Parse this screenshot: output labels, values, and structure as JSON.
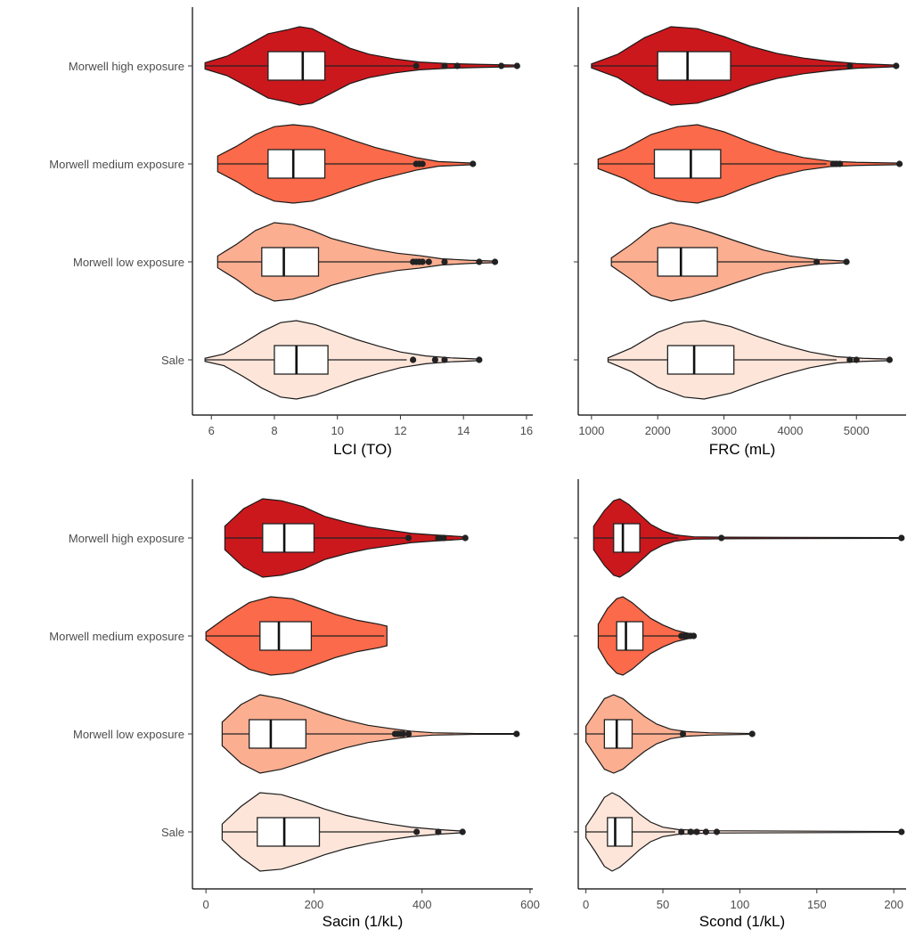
{
  "groups": [
    "Morwell high exposure",
    "Morwell medium exposure",
    "Morwell low exposure",
    "Sale"
  ],
  "colors": {
    "Morwell high exposure": "#cb181d",
    "Morwell medium exposure": "#fb6a4a",
    "Morwell low exposure": "#fcae91",
    "Sale": "#fee5d9"
  },
  "chart_data": [
    {
      "type": "violin",
      "xlabel": "LCI (TO)",
      "ylabel": "",
      "xlim": [
        5.4,
        16.2
      ],
      "xticks": [
        6,
        8,
        10,
        12,
        14,
        16
      ],
      "grid": false,
      "series": [
        {
          "name": "Morwell high exposure",
          "min": 5.8,
          "q1": 7.8,
          "median": 8.9,
          "q3": 9.6,
          "whisker_high": 12.4,
          "outliers": [
            12.5,
            13.4,
            13.8,
            15.2,
            15.7
          ],
          "density": [
            [
              5.8,
              0.08
            ],
            [
              6.5,
              0.25
            ],
            [
              7.2,
              0.55
            ],
            [
              7.8,
              0.82
            ],
            [
              8.4,
              0.92
            ],
            [
              8.8,
              1.0
            ],
            [
              9.2,
              0.95
            ],
            [
              9.8,
              0.7
            ],
            [
              10.4,
              0.45
            ],
            [
              11.0,
              0.3
            ],
            [
              11.8,
              0.18
            ],
            [
              12.6,
              0.1
            ],
            [
              13.5,
              0.06
            ],
            [
              14.5,
              0.04
            ],
            [
              15.7,
              0.02
            ]
          ]
        },
        {
          "name": "Morwell medium exposure",
          "min": 6.2,
          "q1": 7.8,
          "median": 8.6,
          "q3": 9.6,
          "whisker_high": 12.4,
          "outliers": [
            12.5,
            12.6,
            12.7,
            14.3
          ],
          "density": [
            [
              6.2,
              0.2
            ],
            [
              6.8,
              0.45
            ],
            [
              7.4,
              0.75
            ],
            [
              8.0,
              0.95
            ],
            [
              8.6,
              1.0
            ],
            [
              9.2,
              0.95
            ],
            [
              9.8,
              0.8
            ],
            [
              10.5,
              0.6
            ],
            [
              11.2,
              0.42
            ],
            [
              11.9,
              0.28
            ],
            [
              12.5,
              0.16
            ],
            [
              13.2,
              0.06
            ],
            [
              14.3,
              0.02
            ]
          ]
        },
        {
          "name": "Morwell low exposure",
          "min": 6.2,
          "q1": 7.6,
          "median": 8.3,
          "q3": 9.4,
          "whisker_high": 12.3,
          "outliers": [
            12.4,
            12.5,
            12.6,
            12.7,
            12.9,
            13.4,
            14.5,
            15.0
          ],
          "density": [
            [
              6.2,
              0.15
            ],
            [
              6.8,
              0.45
            ],
            [
              7.4,
              0.8
            ],
            [
              8.0,
              1.0
            ],
            [
              8.6,
              0.95
            ],
            [
              9.2,
              0.8
            ],
            [
              9.8,
              0.6
            ],
            [
              10.5,
              0.45
            ],
            [
              11.2,
              0.32
            ],
            [
              11.9,
              0.22
            ],
            [
              12.6,
              0.16
            ],
            [
              13.3,
              0.08
            ],
            [
              14.2,
              0.04
            ],
            [
              15.0,
              0.02
            ]
          ]
        },
        {
          "name": "Sale",
          "min": 5.8,
          "q1": 8.0,
          "median": 8.7,
          "q3": 9.7,
          "whisker_high": 12.2,
          "outliers": [
            12.4,
            13.1,
            13.4,
            14.5
          ],
          "density": [
            [
              5.8,
              0.04
            ],
            [
              6.4,
              0.15
            ],
            [
              7.0,
              0.42
            ],
            [
              7.6,
              0.72
            ],
            [
              8.2,
              0.95
            ],
            [
              8.7,
              1.0
            ],
            [
              9.3,
              0.9
            ],
            [
              9.9,
              0.72
            ],
            [
              10.6,
              0.52
            ],
            [
              11.3,
              0.35
            ],
            [
              12.0,
              0.2
            ],
            [
              12.8,
              0.1
            ],
            [
              13.6,
              0.05
            ],
            [
              14.5,
              0.02
            ]
          ]
        }
      ]
    },
    {
      "type": "violin",
      "xlabel": "FRC (mL)",
      "ylabel": "",
      "xlim": [
        800,
        5750
      ],
      "xticks": [
        1000,
        2000,
        3000,
        4000,
        5000
      ],
      "grid": false,
      "series": [
        {
          "name": "Morwell high exposure",
          "min": 1000,
          "q1": 2000,
          "median": 2450,
          "q3": 3100,
          "whisker_high": 4850,
          "outliers": [
            4900,
            5600
          ],
          "density": [
            [
              1000,
              0.05
            ],
            [
              1400,
              0.3
            ],
            [
              1800,
              0.72
            ],
            [
              2200,
              1.0
            ],
            [
              2600,
              0.95
            ],
            [
              3000,
              0.75
            ],
            [
              3400,
              0.5
            ],
            [
              3800,
              0.32
            ],
            [
              4200,
              0.2
            ],
            [
              4600,
              0.12
            ],
            [
              5000,
              0.06
            ],
            [
              5600,
              0.02
            ]
          ]
        },
        {
          "name": "Morwell medium exposure",
          "min": 1100,
          "q1": 1950,
          "median": 2500,
          "q3": 2950,
          "whisker_high": 4550,
          "outliers": [
            4650,
            4700,
            4750,
            5650
          ],
          "density": [
            [
              1100,
              0.12
            ],
            [
              1500,
              0.38
            ],
            [
              1900,
              0.75
            ],
            [
              2300,
              0.95
            ],
            [
              2600,
              1.0
            ],
            [
              3000,
              0.82
            ],
            [
              3400,
              0.55
            ],
            [
              3800,
              0.32
            ],
            [
              4200,
              0.16
            ],
            [
              4600,
              0.07
            ],
            [
              5000,
              0.04
            ],
            [
              5650,
              0.02
            ]
          ]
        },
        {
          "name": "Morwell low exposure",
          "min": 1300,
          "q1": 2000,
          "median": 2350,
          "q3": 2900,
          "whisker_high": 4400,
          "outliers": [
            4400,
            4850
          ],
          "density": [
            [
              1300,
              0.1
            ],
            [
              1600,
              0.45
            ],
            [
              1900,
              0.85
            ],
            [
              2200,
              1.0
            ],
            [
              2500,
              0.9
            ],
            [
              2800,
              0.75
            ],
            [
              3200,
              0.52
            ],
            [
              3600,
              0.3
            ],
            [
              4000,
              0.15
            ],
            [
              4400,
              0.06
            ],
            [
              4850,
              0.02
            ]
          ]
        },
        {
          "name": "Sale",
          "min": 1250,
          "q1": 2150,
          "median": 2550,
          "q3": 3150,
          "whisker_high": 4700,
          "outliers": [
            4900,
            5000,
            5500
          ],
          "density": [
            [
              1250,
              0.05
            ],
            [
              1600,
              0.3
            ],
            [
              2000,
              0.7
            ],
            [
              2400,
              0.95
            ],
            [
              2700,
              1.0
            ],
            [
              3100,
              0.85
            ],
            [
              3500,
              0.6
            ],
            [
              3900,
              0.38
            ],
            [
              4300,
              0.2
            ],
            [
              4700,
              0.08
            ],
            [
              5100,
              0.04
            ],
            [
              5500,
              0.02
            ]
          ]
        }
      ]
    },
    {
      "type": "violin",
      "xlabel": "Sacin (1/kL)",
      "ylabel": "",
      "xlim": [
        -25,
        605
      ],
      "xticks": [
        0,
        200,
        400,
        600
      ],
      "grid": false,
      "series": [
        {
          "name": "Morwell high exposure",
          "min": 35,
          "q1": 105,
          "median": 145,
          "q3": 200,
          "whisker_high": 375,
          "outliers": [
            375,
            430,
            440,
            480
          ],
          "density": [
            [
              35,
              0.3
            ],
            [
              70,
              0.75
            ],
            [
              105,
              1.0
            ],
            [
              140,
              0.95
            ],
            [
              180,
              0.8
            ],
            [
              220,
              0.55
            ],
            [
              260,
              0.4
            ],
            [
              300,
              0.28
            ],
            [
              340,
              0.2
            ],
            [
              380,
              0.12
            ],
            [
              420,
              0.08
            ],
            [
              480,
              0.03
            ]
          ]
        },
        {
          "name": "Morwell medium exposure",
          "min": 0,
          "q1": 100,
          "median": 135,
          "q3": 195,
          "whisker_high": 330,
          "outliers": [],
          "density": [
            [
              0,
              0.1
            ],
            [
              40,
              0.5
            ],
            [
              80,
              0.85
            ],
            [
              120,
              1.0
            ],
            [
              160,
              0.95
            ],
            [
              200,
              0.75
            ],
            [
              240,
              0.55
            ],
            [
              280,
              0.4
            ],
            [
              320,
              0.3
            ],
            [
              335,
              0.25
            ]
          ]
        },
        {
          "name": "Morwell low exposure",
          "min": 30,
          "q1": 80,
          "median": 120,
          "q3": 185,
          "whisker_high": 350,
          "outliers": [
            350,
            355,
            360,
            365,
            375,
            575
          ],
          "density": [
            [
              30,
              0.3
            ],
            [
              65,
              0.75
            ],
            [
              100,
              1.0
            ],
            [
              140,
              0.9
            ],
            [
              180,
              0.72
            ],
            [
              220,
              0.52
            ],
            [
              260,
              0.35
            ],
            [
              300,
              0.22
            ],
            [
              340,
              0.14
            ],
            [
              380,
              0.07
            ],
            [
              420,
              0.03
            ],
            [
              500,
              0.01
            ],
            [
              575,
              0.01
            ]
          ]
        },
        {
          "name": "Sale",
          "min": 30,
          "q1": 95,
          "median": 145,
          "q3": 210,
          "whisker_high": 385,
          "outliers": [
            390,
            430,
            475
          ],
          "density": [
            [
              30,
              0.2
            ],
            [
              65,
              0.65
            ],
            [
              100,
              1.0
            ],
            [
              140,
              0.95
            ],
            [
              180,
              0.78
            ],
            [
              220,
              0.58
            ],
            [
              260,
              0.42
            ],
            [
              300,
              0.3
            ],
            [
              340,
              0.2
            ],
            [
              380,
              0.12
            ],
            [
              430,
              0.06
            ],
            [
              475,
              0.02
            ]
          ]
        }
      ]
    },
    {
      "type": "violin",
      "xlabel": "Scond (1/kL)",
      "ylabel": "",
      "xlim": [
        -5,
        208
      ],
      "xticks": [
        0,
        50,
        100,
        150,
        200
      ],
      "grid": false,
      "series": [
        {
          "name": "Morwell high exposure",
          "min": 5,
          "q1": 18,
          "median": 24,
          "q3": 35,
          "whisker_high": 60,
          "outliers": [
            88,
            205
          ],
          "density": [
            [
              5,
              0.3
            ],
            [
              12,
              0.7
            ],
            [
              18,
              0.95
            ],
            [
              22,
              1.0
            ],
            [
              28,
              0.85
            ],
            [
              35,
              0.6
            ],
            [
              42,
              0.35
            ],
            [
              50,
              0.18
            ],
            [
              58,
              0.08
            ],
            [
              70,
              0.03
            ],
            [
              90,
              0.02
            ],
            [
              205,
              0.01
            ]
          ]
        },
        {
          "name": "Morwell medium exposure",
          "min": 8,
          "q1": 20,
          "median": 26,
          "q3": 37,
          "whisker_high": 62,
          "outliers": [
            62,
            64,
            66,
            68,
            70
          ],
          "density": [
            [
              8,
              0.3
            ],
            [
              14,
              0.7
            ],
            [
              20,
              0.95
            ],
            [
              24,
              1.0
            ],
            [
              30,
              0.85
            ],
            [
              36,
              0.65
            ],
            [
              42,
              0.45
            ],
            [
              50,
              0.28
            ],
            [
              58,
              0.15
            ],
            [
              65,
              0.08
            ],
            [
              70,
              0.04
            ]
          ]
        },
        {
          "name": "Morwell low exposure",
          "min": 0,
          "q1": 12,
          "median": 20,
          "q3": 30,
          "whisker_high": 62,
          "outliers": [
            63,
            108
          ],
          "density": [
            [
              0,
              0.2
            ],
            [
              6,
              0.55
            ],
            [
              12,
              0.9
            ],
            [
              18,
              1.0
            ],
            [
              24,
              0.9
            ],
            [
              30,
              0.7
            ],
            [
              38,
              0.45
            ],
            [
              46,
              0.25
            ],
            [
              55,
              0.12
            ],
            [
              65,
              0.06
            ],
            [
              80,
              0.03
            ],
            [
              108,
              0.01
            ]
          ]
        },
        {
          "name": "Sale",
          "min": 0,
          "q1": 14,
          "median": 19,
          "q3": 30,
          "whisker_high": 58,
          "outliers": [
            62,
            68,
            72,
            78,
            85,
            205
          ],
          "density": [
            [
              0,
              0.15
            ],
            [
              6,
              0.5
            ],
            [
              12,
              0.88
            ],
            [
              17,
              1.0
            ],
            [
              22,
              0.9
            ],
            [
              28,
              0.7
            ],
            [
              35,
              0.45
            ],
            [
              42,
              0.25
            ],
            [
              50,
              0.12
            ],
            [
              60,
              0.06
            ],
            [
              80,
              0.03
            ],
            [
              205,
              0.01
            ]
          ]
        }
      ]
    }
  ]
}
